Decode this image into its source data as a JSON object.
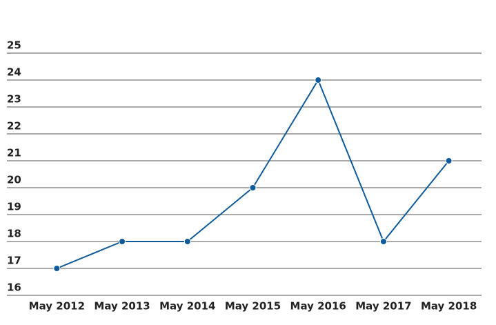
{
  "chart_data": {
    "type": "line",
    "categories": [
      "May 2012",
      "May 2013",
      "May 2014",
      "May 2015",
      "May 2016",
      "May 2017",
      "May 2018"
    ],
    "values": [
      17,
      18,
      18,
      20,
      24,
      18,
      21
    ],
    "color": "#0e5a9a",
    "ylim": [
      16,
      25
    ],
    "yticks": [
      16,
      17,
      18,
      19,
      20,
      21,
      22,
      23,
      24,
      25
    ],
    "grid": true
  }
}
